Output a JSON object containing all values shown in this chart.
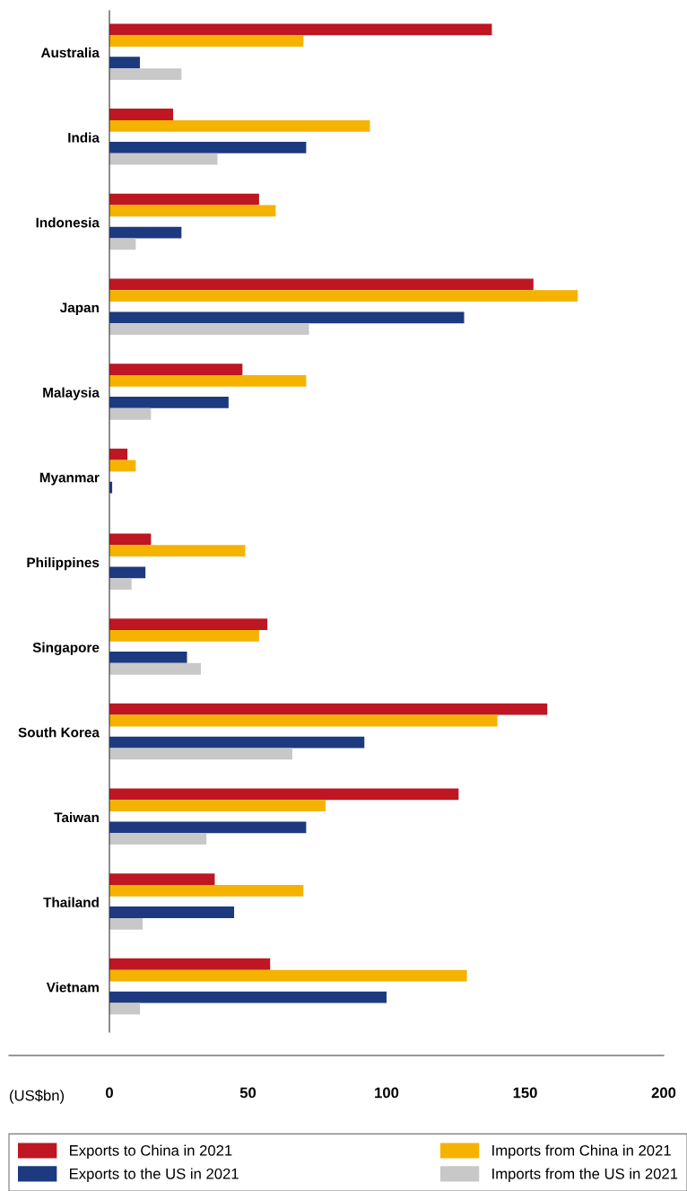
{
  "chart_data": {
    "type": "bar",
    "orientation": "horizontal",
    "xlabel": "(US$bn)",
    "categories": [
      "Australia",
      "India",
      "Indonesia",
      "Japan",
      "Malaysia",
      "Myanmar",
      "Philippines",
      "Singapore",
      "South Korea",
      "Taiwan",
      "Thailand",
      "Vietnam"
    ],
    "series": [
      {
        "name": "Exports to China in 2021",
        "color": "#be1622",
        "values": [
          138,
          23,
          54,
          153,
          48,
          6.5,
          15,
          57,
          158,
          126,
          38,
          58
        ]
      },
      {
        "name": "Imports from China in 2021",
        "color": "#f5b300",
        "values": [
          70,
          94,
          60,
          169,
          71,
          9.5,
          49,
          54,
          140,
          78,
          70,
          129
        ]
      },
      {
        "name": "Exports to the US in 2021",
        "color": "#1d3a80",
        "values": [
          11,
          71,
          26,
          128,
          43,
          1,
          13,
          28,
          92,
          71,
          45,
          100
        ]
      },
      {
        "name": "Imports from the US in 2021",
        "color": "#c8c8c8",
        "values": [
          26,
          39,
          9.5,
          72,
          15,
          null,
          8,
          33,
          66,
          35,
          12,
          11
        ]
      }
    ],
    "xlim": [
      0,
      200
    ],
    "xticks": [
      0,
      50,
      100,
      150,
      200
    ],
    "grid": false,
    "legend": "bottom"
  }
}
